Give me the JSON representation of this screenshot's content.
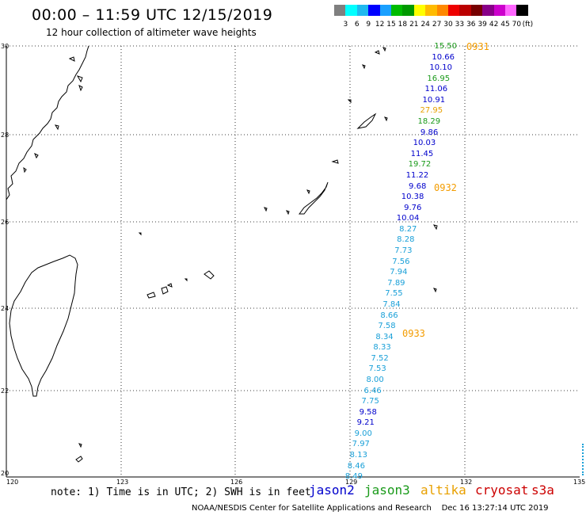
{
  "title": "00:00 – 11:59 UTC 12/15/2019",
  "subtitle": "12 hour collection of altimeter wave heights",
  "colorbar": {
    "colors": [
      "#7f7f7f",
      "#00ffff",
      "#1fb9ef",
      "#0000ff",
      "#1aa0ff",
      "#00bb00",
      "#009900",
      "#ffff00",
      "#ffbb00",
      "#ff8800",
      "#ee0000",
      "#bb0000",
      "#770000",
      "#880088",
      "#cc00cc",
      "#ff66ff",
      "#000000"
    ],
    "labels": [
      "3",
      "6",
      "9",
      "12",
      "15",
      "18",
      "21",
      "24",
      "27",
      "30",
      "33",
      "36",
      "39",
      "42",
      "45",
      "70"
    ],
    "unit": "(ft)"
  },
  "lat_labels": [
    "30",
    "28",
    "26",
    "24",
    "22",
    "20"
  ],
  "lon_labels": [
    "120",
    "123",
    "126",
    "129",
    "132",
    "135"
  ],
  "passes": [
    "0931",
    "0932",
    "0933"
  ],
  "observations": [
    {
      "value": "15.50",
      "color": "#1a9a1a"
    },
    {
      "value": "10.66",
      "color": "#0000cc"
    },
    {
      "value": "10.10",
      "color": "#0000cc"
    },
    {
      "value": "16.95",
      "color": "#1a9a1a"
    },
    {
      "value": "11.06",
      "color": "#0000cc"
    },
    {
      "value": "10.91",
      "color": "#0000cc"
    },
    {
      "value": "27.95",
      "color": "#e8a000"
    },
    {
      "value": "18.29",
      "color": "#1a9a1a"
    },
    {
      "value": "9.86",
      "color": "#0000cc"
    },
    {
      "value": "10.03",
      "color": "#0000cc"
    },
    {
      "value": "11.45",
      "color": "#0000cc"
    },
    {
      "value": "19.72",
      "color": "#1a9a1a"
    },
    {
      "value": "11.22",
      "color": "#0000cc"
    },
    {
      "value": "9.68",
      "color": "#0000cc"
    },
    {
      "value": "10.38",
      "color": "#0000cc"
    },
    {
      "value": "9.76",
      "color": "#0000cc"
    },
    {
      "value": "10.04",
      "color": "#0000cc"
    },
    {
      "value": "8.27",
      "color": "#1aa0d8"
    },
    {
      "value": "8.28",
      "color": "#1aa0d8"
    },
    {
      "value": "7.73",
      "color": "#1aa0d8"
    },
    {
      "value": "7.56",
      "color": "#1aa0d8"
    },
    {
      "value": "7.94",
      "color": "#1aa0d8"
    },
    {
      "value": "7.89",
      "color": "#1aa0d8"
    },
    {
      "value": "7.55",
      "color": "#1aa0d8"
    },
    {
      "value": "7.84",
      "color": "#1aa0d8"
    },
    {
      "value": "8.66",
      "color": "#1aa0d8"
    },
    {
      "value": "7.58",
      "color": "#1aa0d8"
    },
    {
      "value": "8.34",
      "color": "#1aa0d8"
    },
    {
      "value": "8.33",
      "color": "#1aa0d8"
    },
    {
      "value": "7.52",
      "color": "#1aa0d8"
    },
    {
      "value": "7.53",
      "color": "#1aa0d8"
    },
    {
      "value": "8.00",
      "color": "#1aa0d8"
    },
    {
      "value": "6.46",
      "color": "#1aa0d8"
    },
    {
      "value": "7.75",
      "color": "#1aa0d8"
    },
    {
      "value": "9.58",
      "color": "#0000cc"
    },
    {
      "value": "9.21",
      "color": "#0000cc"
    },
    {
      "value": "9.00",
      "color": "#1aa0d8"
    },
    {
      "value": "7.97",
      "color": "#1aa0d8"
    },
    {
      "value": "8.13",
      "color": "#1aa0d8"
    },
    {
      "value": "8.46",
      "color": "#1aa0d8"
    },
    {
      "value": "8.49",
      "color": "#1aa0d8"
    }
  ],
  "note": "note: 1) Time is in UTC; 2) SWH is in feet",
  "satellites": [
    {
      "name": "jason2",
      "color": "#0000cc"
    },
    {
      "name": "jason3",
      "color": "#1a9a1a"
    },
    {
      "name": "altika",
      "color": "#e8a000"
    },
    {
      "name": "cryosat",
      "color": "#cc0000"
    },
    {
      "name": "s3a",
      "color": "#cc0000"
    }
  ],
  "credit": "NOAA/NESDIS Center for Satellite Applications and Research    Dec 16 13:27:14 UTC 2019"
}
